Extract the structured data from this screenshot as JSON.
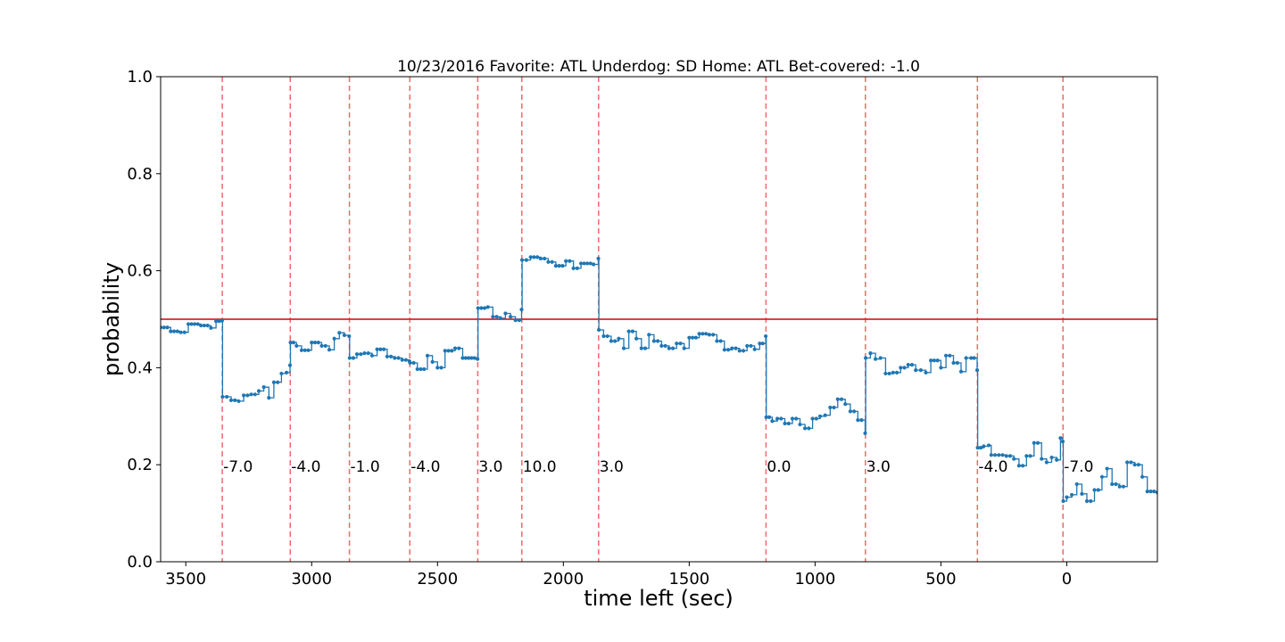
{
  "chart_data": {
    "type": "line",
    "title": "10/23/2016 Favorite: ATL Underdog: SD Home: ATL Bet-covered: -1.0",
    "xlabel": "time left (sec)",
    "ylabel": "probability",
    "xlim": [
      3600,
      -360
    ],
    "ylim": [
      0.0,
      1.0
    ],
    "x_ticks": [
      3500,
      3000,
      2500,
      2000,
      1500,
      1000,
      500,
      0
    ],
    "y_ticks": [
      0.0,
      0.2,
      0.4,
      0.6,
      0.8,
      1.0
    ],
    "x_tick_labels": [
      "3500",
      "3000",
      "2500",
      "2000",
      "1500",
      "1000",
      "500",
      "0"
    ],
    "y_tick_labels": [
      "0.0",
      "0.2",
      "0.4",
      "0.6",
      "0.8",
      "1.0"
    ],
    "grid": false,
    "reference_line": {
      "y": 0.5,
      "color": "#d62728"
    },
    "score_changes": [
      {
        "x": 3355,
        "label": "-7.0"
      },
      {
        "x": 3085,
        "label": "-4.0"
      },
      {
        "x": 2850,
        "label": "-1.0"
      },
      {
        "x": 2610,
        "label": "-4.0"
      },
      {
        "x": 2340,
        "label": "3.0"
      },
      {
        "x": 2165,
        "label": "10.0"
      },
      {
        "x": 1860,
        "label": "3.0"
      },
      {
        "x": 1195,
        "label": "0.0"
      },
      {
        "x": 800,
        "label": "3.0"
      },
      {
        "x": 355,
        "label": "-4.0"
      },
      {
        "x": 15,
        "label": "-7.0"
      }
    ],
    "annotation_y": 0.2,
    "series": [
      {
        "color": "#1f77b4",
        "points": [
          [
            3600,
            0.483
          ],
          [
            3560,
            0.475
          ],
          [
            3520,
            0.473
          ],
          [
            3490,
            0.49
          ],
          [
            3440,
            0.487
          ],
          [
            3400,
            0.482
          ],
          [
            3380,
            0.496
          ],
          [
            3356,
            0.497
          ],
          [
            3354,
            0.34
          ],
          [
            3320,
            0.333
          ],
          [
            3290,
            0.331
          ],
          [
            3270,
            0.343
          ],
          [
            3240,
            0.345
          ],
          [
            3210,
            0.352
          ],
          [
            3190,
            0.36
          ],
          [
            3170,
            0.338
          ],
          [
            3150,
            0.37
          ],
          [
            3120,
            0.388
          ],
          [
            3100,
            0.39
          ],
          [
            3086,
            0.405
          ],
          [
            3084,
            0.452
          ],
          [
            3060,
            0.445
          ],
          [
            3040,
            0.436
          ],
          [
            3000,
            0.452
          ],
          [
            2960,
            0.445
          ],
          [
            2930,
            0.437
          ],
          [
            2910,
            0.46
          ],
          [
            2890,
            0.472
          ],
          [
            2870,
            0.467
          ],
          [
            2851,
            0.465
          ],
          [
            2849,
            0.42
          ],
          [
            2820,
            0.428
          ],
          [
            2790,
            0.43
          ],
          [
            2760,
            0.425
          ],
          [
            2740,
            0.438
          ],
          [
            2700,
            0.423
          ],
          [
            2670,
            0.42
          ],
          [
            2640,
            0.416
          ],
          [
            2611,
            0.413
          ],
          [
            2609,
            0.41
          ],
          [
            2580,
            0.397
          ],
          [
            2540,
            0.425
          ],
          [
            2520,
            0.412
          ],
          [
            2500,
            0.4
          ],
          [
            2470,
            0.435
          ],
          [
            2430,
            0.44
          ],
          [
            2400,
            0.42
          ],
          [
            2341,
            0.418
          ],
          [
            2339,
            0.523
          ],
          [
            2300,
            0.525
          ],
          [
            2280,
            0.505
          ],
          [
            2250,
            0.502
          ],
          [
            2230,
            0.512
          ],
          [
            2210,
            0.505
          ],
          [
            2190,
            0.498
          ],
          [
            2175,
            0.498
          ],
          [
            2166,
            0.52
          ],
          [
            2164,
            0.622
          ],
          [
            2130,
            0.628
          ],
          [
            2090,
            0.625
          ],
          [
            2060,
            0.618
          ],
          [
            2030,
            0.61
          ],
          [
            1990,
            0.62
          ],
          [
            1960,
            0.605
          ],
          [
            1930,
            0.615
          ],
          [
            1880,
            0.613
          ],
          [
            1861,
            0.625
          ],
          [
            1859,
            0.478
          ],
          [
            1840,
            0.465
          ],
          [
            1810,
            0.455
          ],
          [
            1780,
            0.46
          ],
          [
            1760,
            0.44
          ],
          [
            1740,
            0.475
          ],
          [
            1710,
            0.46
          ],
          [
            1690,
            0.44
          ],
          [
            1660,
            0.468
          ],
          [
            1640,
            0.455
          ],
          [
            1610,
            0.445
          ],
          [
            1580,
            0.44
          ],
          [
            1550,
            0.45
          ],
          [
            1520,
            0.44
          ],
          [
            1500,
            0.462
          ],
          [
            1460,
            0.47
          ],
          [
            1420,
            0.468
          ],
          [
            1390,
            0.455
          ],
          [
            1360,
            0.437
          ],
          [
            1330,
            0.44
          ],
          [
            1300,
            0.435
          ],
          [
            1270,
            0.445
          ],
          [
            1240,
            0.438
          ],
          [
            1220,
            0.45
          ],
          [
            1196,
            0.465
          ],
          [
            1194,
            0.298
          ],
          [
            1170,
            0.29
          ],
          [
            1150,
            0.295
          ],
          [
            1120,
            0.285
          ],
          [
            1090,
            0.295
          ],
          [
            1060,
            0.283
          ],
          [
            1040,
            0.275
          ],
          [
            1010,
            0.295
          ],
          [
            980,
            0.3
          ],
          [
            960,
            0.302
          ],
          [
            940,
            0.318
          ],
          [
            910,
            0.335
          ],
          [
            880,
            0.325
          ],
          [
            860,
            0.31
          ],
          [
            830,
            0.292
          ],
          [
            801,
            0.265
          ],
          [
            799,
            0.42
          ],
          [
            780,
            0.43
          ],
          [
            760,
            0.418
          ],
          [
            740,
            0.42
          ],
          [
            720,
            0.388
          ],
          [
            690,
            0.39
          ],
          [
            660,
            0.4
          ],
          [
            630,
            0.406
          ],
          [
            600,
            0.395
          ],
          [
            580,
            0.395
          ],
          [
            560,
            0.39
          ],
          [
            540,
            0.415
          ],
          [
            500,
            0.4
          ],
          [
            480,
            0.425
          ],
          [
            450,
            0.41
          ],
          [
            420,
            0.392
          ],
          [
            400,
            0.42
          ],
          [
            380,
            0.42
          ],
          [
            356,
            0.395
          ],
          [
            354,
            0.235
          ],
          [
            330,
            0.238
          ],
          [
            310,
            0.24
          ],
          [
            300,
            0.22
          ],
          [
            270,
            0.22
          ],
          [
            240,
            0.218
          ],
          [
            210,
            0.212
          ],
          [
            190,
            0.198
          ],
          [
            160,
            0.218
          ],
          [
            130,
            0.245
          ],
          [
            100,
            0.212
          ],
          [
            80,
            0.205
          ],
          [
            60,
            0.215
          ],
          [
            40,
            0.21
          ],
          [
            25,
            0.255
          ],
          [
            16,
            0.248
          ],
          [
            14,
            0.125
          ],
          [
            0,
            0.133
          ],
          [
            -20,
            0.138
          ],
          [
            -40,
            0.16
          ],
          [
            -60,
            0.14
          ],
          [
            -80,
            0.125
          ],
          [
            -110,
            0.148
          ],
          [
            -140,
            0.175
          ],
          [
            -160,
            0.192
          ],
          [
            -180,
            0.16
          ],
          [
            -210,
            0.155
          ],
          [
            -240,
            0.205
          ],
          [
            -270,
            0.2
          ],
          [
            -300,
            0.175
          ],
          [
            -320,
            0.145
          ],
          [
            -360,
            0.143
          ]
        ]
      }
    ]
  }
}
